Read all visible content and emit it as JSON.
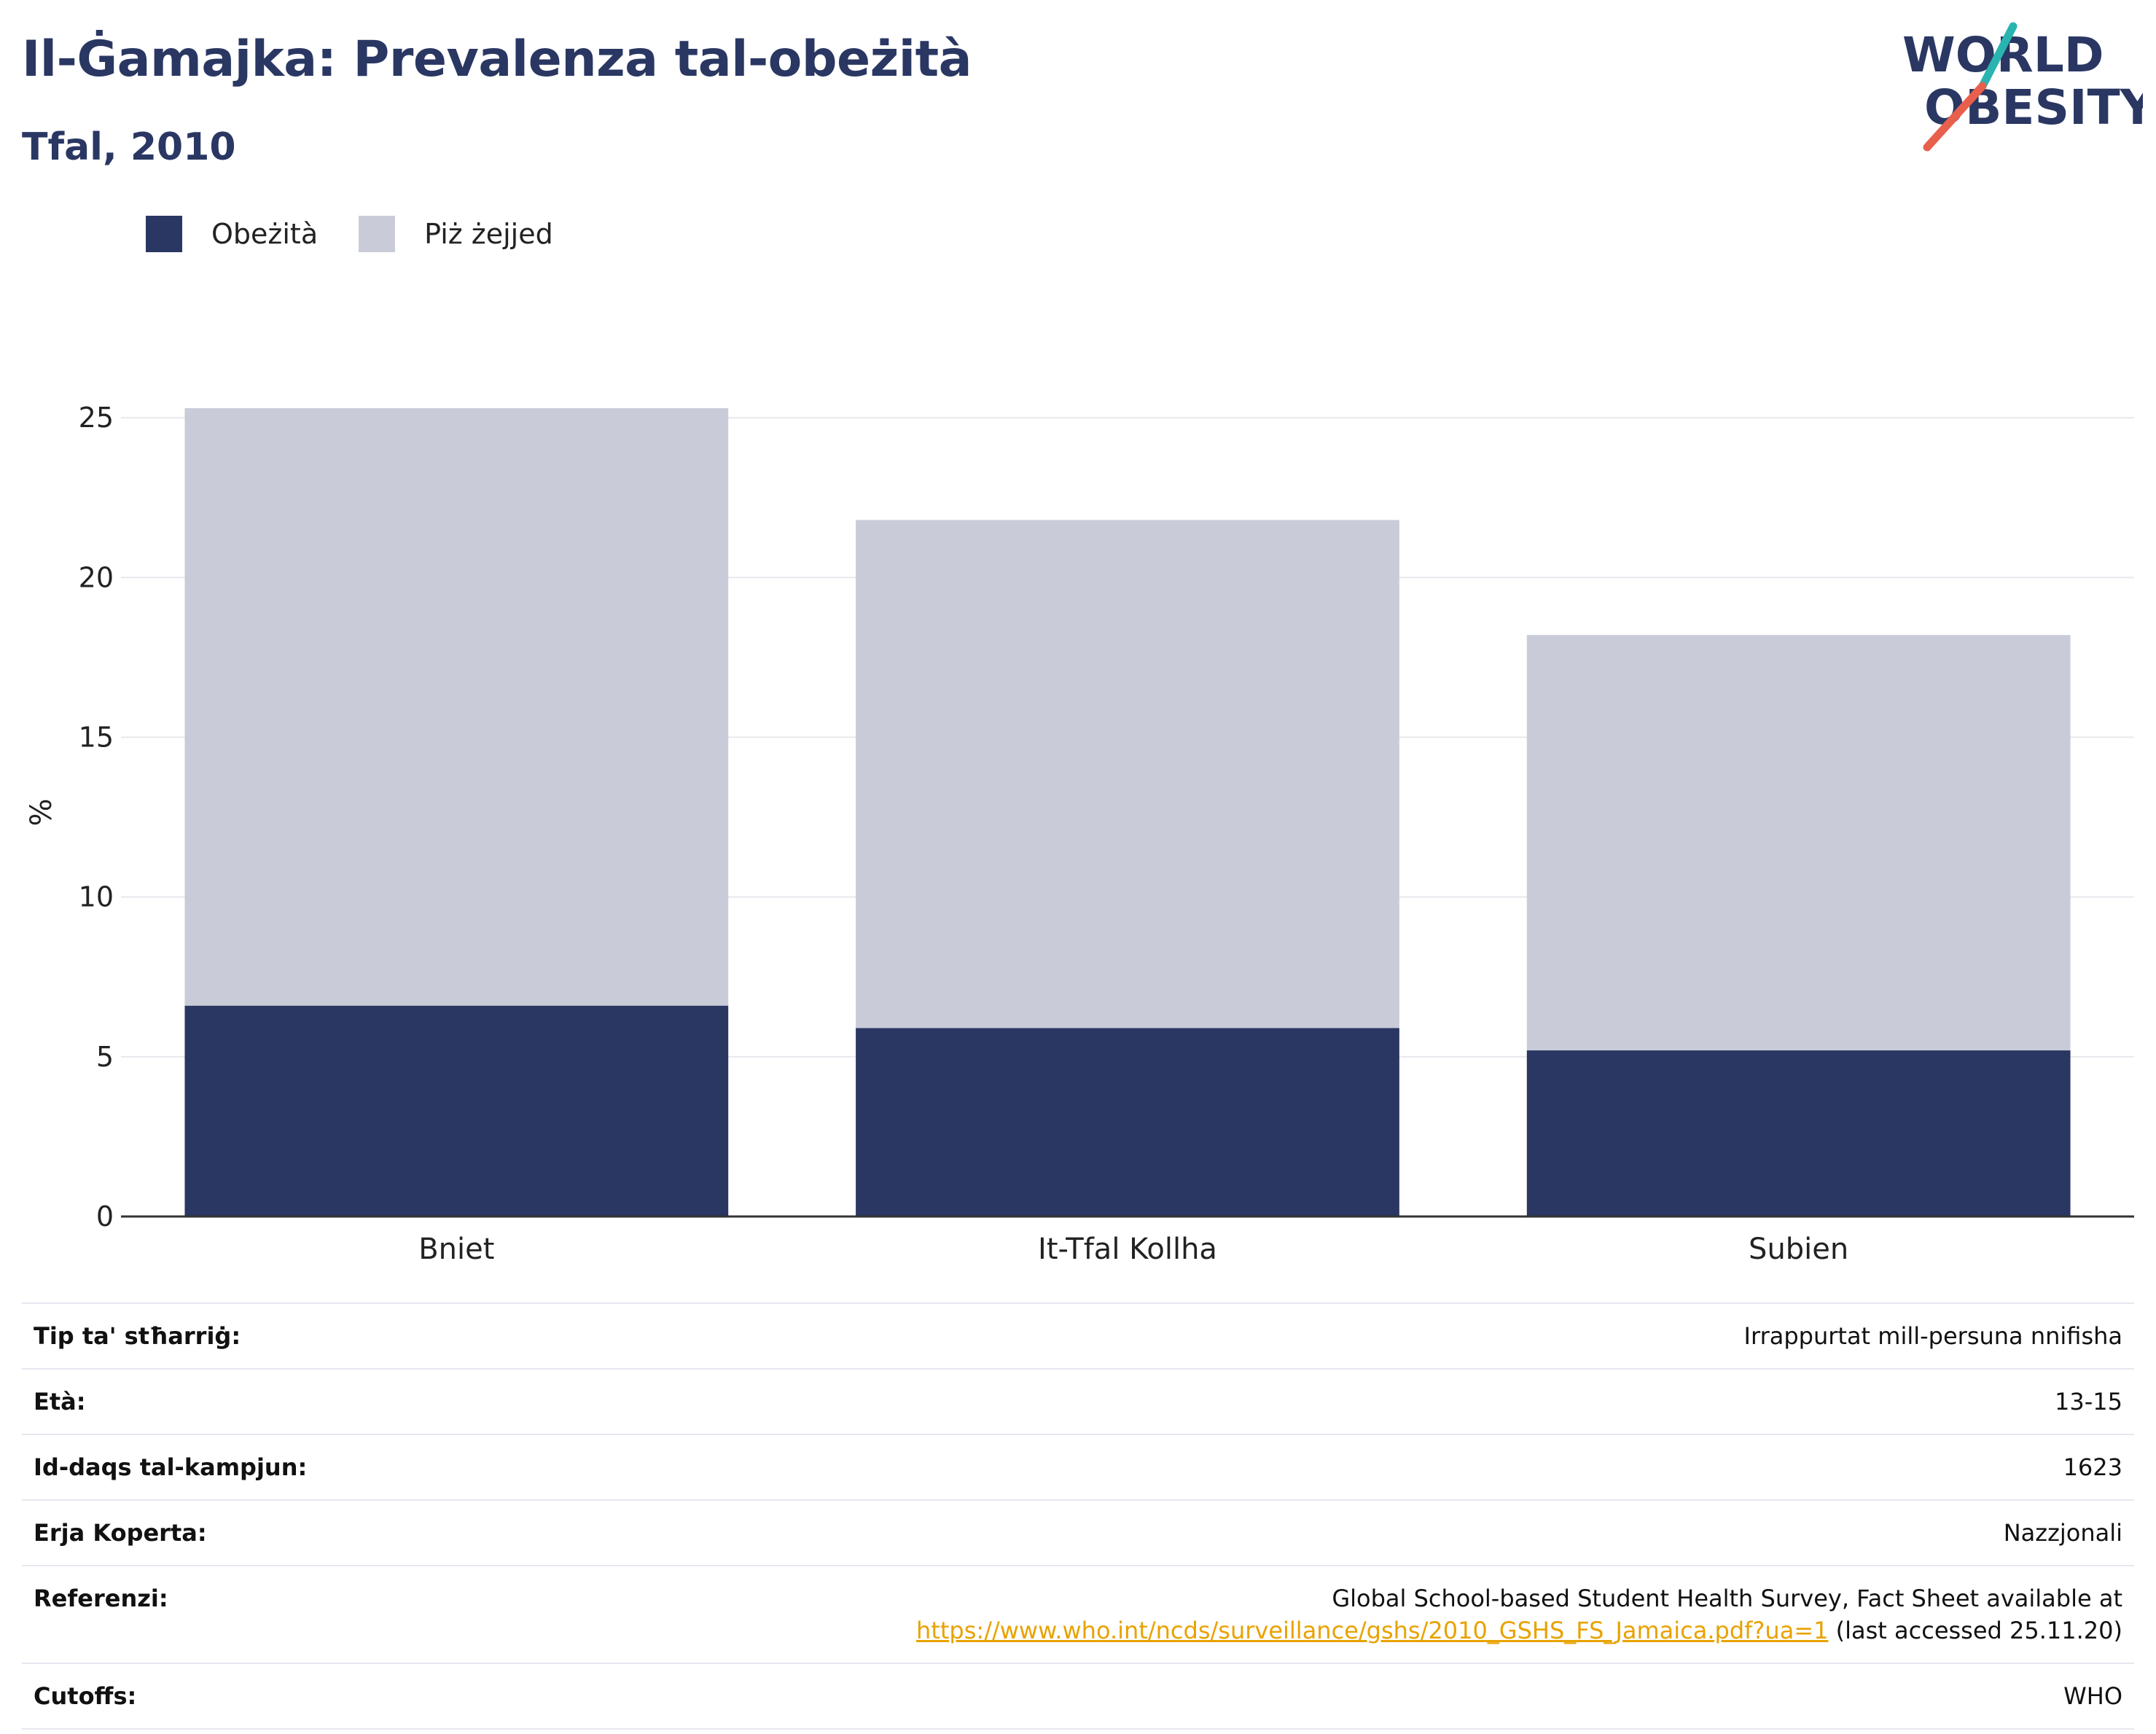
{
  "header": {
    "title": "Il-Ġamajka: Prevalenza tal-obeżità",
    "subtitle": "Tfal, 2010"
  },
  "logo": {
    "line1": "WORLD",
    "line2": "OBESITY",
    "colors": {
      "text": "#2a3763",
      "slash_teal": "#2ab4b0",
      "slash_red": "#e8604c"
    }
  },
  "legend": {
    "items": [
      {
        "label": "Obeżità",
        "color": "#2a3763"
      },
      {
        "label": "Piż żejjed",
        "color": "#c9ccd8"
      }
    ]
  },
  "chart_data": {
    "type": "bar",
    "stacked": true,
    "categories": [
      "Bniet",
      "It-Tfal Kollha",
      "Subien"
    ],
    "series": [
      {
        "name": "Obeżità",
        "values": [
          6.6,
          5.9,
          5.2
        ],
        "color": "#2a3763"
      },
      {
        "name": "Piż żejjed",
        "values": [
          18.7,
          15.9,
          13.0
        ],
        "color": "#c9ccd8"
      }
    ],
    "ylabel": "%",
    "ylim": [
      0,
      25.3
    ],
    "yticks": [
      0,
      5,
      10,
      15,
      20,
      25
    ],
    "grid": true,
    "legend_position": "top-left"
  },
  "info_table": {
    "rows": [
      {
        "key": "type",
        "label": "Tip ta' stħarriġ:",
        "value": "Irrappurtat mill-persuna nnifisha"
      },
      {
        "key": "age",
        "label": "Età:",
        "value": "13-15"
      },
      {
        "key": "sample",
        "label": "Id-daqs tal-kampjun:",
        "value": "1623"
      },
      {
        "key": "area",
        "label": "Erja Koperta:",
        "value": "Nazzjonali"
      },
      {
        "key": "reference",
        "label": "Referenzi:",
        "value_line1": "Global School-based Student Health Survey, Fact Sheet available at",
        "link": "https://www.who.int/ncds/surveillance/gshs/2010_GSHS_FS_Jamaica.pdf?ua=1",
        "value_suffix": " (last accessed 25.11.20)"
      },
      {
        "key": "cutoffs",
        "label": "Cutoffs:",
        "value": "WHO"
      }
    ]
  }
}
